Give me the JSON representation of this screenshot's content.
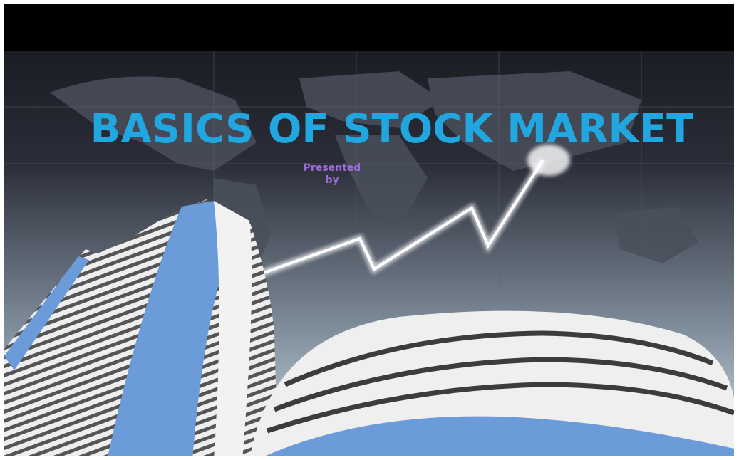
{
  "slide": {
    "title": "BASICS OF STOCK MARKET",
    "subtitle_lines": [
      "Presented",
      "by"
    ]
  }
}
